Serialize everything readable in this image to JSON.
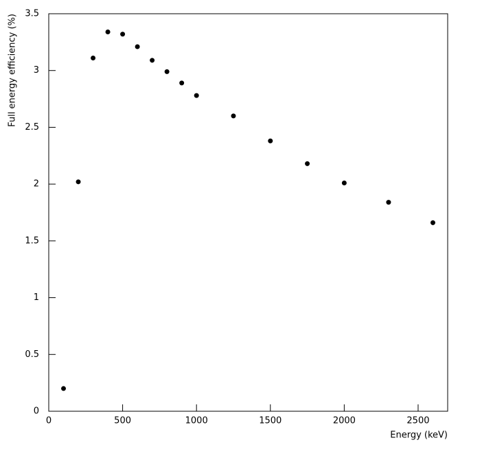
{
  "chart_data": {
    "type": "scatter",
    "x_label": "Energy (keV)",
    "y_label": "Full energy efficiency (%)",
    "x": [
      100,
      200,
      300,
      400,
      500,
      600,
      700,
      800,
      900,
      1000,
      1250,
      1500,
      1750,
      2000,
      2300,
      2600
    ],
    "values": [
      0.2,
      2.02,
      3.11,
      3.34,
      3.32,
      3.21,
      3.09,
      2.99,
      2.89,
      2.78,
      2.6,
      2.38,
      2.18,
      2.01,
      1.84,
      1.66
    ],
    "color": "#000000",
    "xlim": [
      0,
      2700
    ],
    "xticks": [
      0,
      500,
      1000,
      1500,
      2000,
      2500
    ],
    "ylim": [
      0,
      3.5
    ],
    "yticks": [
      0,
      0.5,
      1,
      1.5,
      2,
      2.5,
      3,
      3.5
    ],
    "grid": false
  }
}
